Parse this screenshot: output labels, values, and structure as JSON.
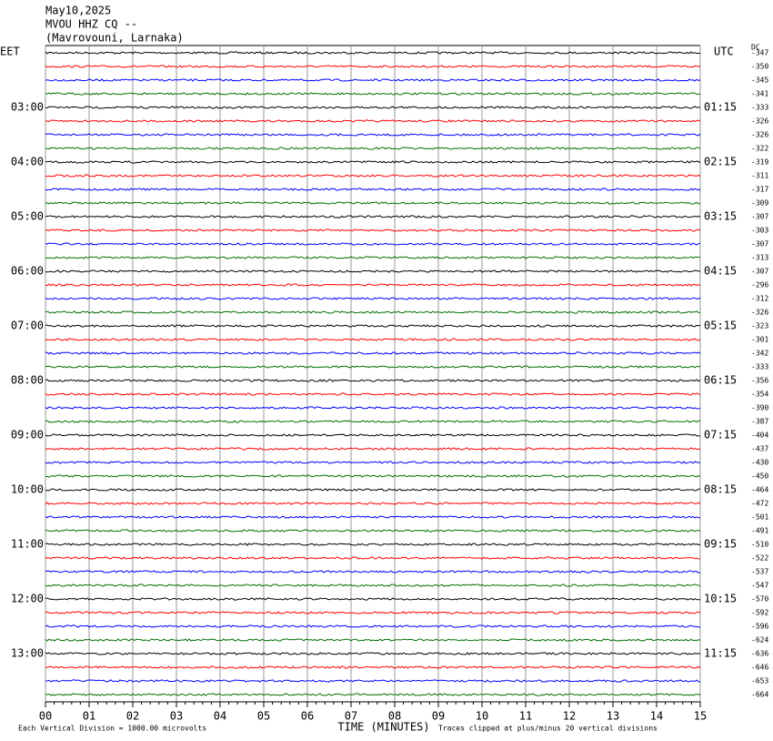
{
  "chart_data": {
    "type": "helicorder",
    "title_lines": [
      "May10,2025",
      "MVOU HHZ CQ --",
      "(Mavrovouni, Larnaka)"
    ],
    "left_zone": "EET",
    "right_zone": "UTC",
    "dc_header": "DC",
    "x_label": "TIME (MINUTES)",
    "scale_note": "Each Vertical Division = 1000.00 microvolts",
    "clip_note": "Traces clipped at plus/minus 20 vertical divisions",
    "xlim": [
      0,
      15
    ],
    "xticks": [
      {
        "value": 0,
        "label": "00"
      },
      {
        "value": 1,
        "label": "01"
      },
      {
        "value": 2,
        "label": "02"
      },
      {
        "value": 3,
        "label": "03"
      },
      {
        "value": 4,
        "label": "04"
      },
      {
        "value": 5,
        "label": "05"
      },
      {
        "value": 6,
        "label": "06"
      },
      {
        "value": 7,
        "label": "07"
      },
      {
        "value": 8,
        "label": "08"
      },
      {
        "value": 9,
        "label": "09"
      },
      {
        "value": 10,
        "label": "10"
      },
      {
        "value": 11,
        "label": "11"
      },
      {
        "value": 12,
        "label": "12"
      },
      {
        "value": 13,
        "label": "13"
      },
      {
        "value": 14,
        "label": "14"
      },
      {
        "value": 15,
        "label": "15"
      }
    ],
    "trace_colors": [
      "#000000",
      "#ff0000",
      "#0000ff",
      "#007000"
    ],
    "rows": [
      {
        "left": null,
        "right": null,
        "dc": -347
      },
      {
        "left": null,
        "right": null,
        "dc": -350
      },
      {
        "left": null,
        "right": null,
        "dc": -345
      },
      {
        "left": null,
        "right": null,
        "dc": -341
      },
      {
        "left": "03:00",
        "right": "01:15",
        "dc": -333
      },
      {
        "left": null,
        "right": null,
        "dc": -326
      },
      {
        "left": null,
        "right": null,
        "dc": -326
      },
      {
        "left": null,
        "right": null,
        "dc": -322
      },
      {
        "left": "04:00",
        "right": "02:15",
        "dc": -319
      },
      {
        "left": null,
        "right": null,
        "dc": -311
      },
      {
        "left": null,
        "right": null,
        "dc": -317
      },
      {
        "left": null,
        "right": null,
        "dc": -309
      },
      {
        "left": "05:00",
        "right": "03:15",
        "dc": -307
      },
      {
        "left": null,
        "right": null,
        "dc": -303
      },
      {
        "left": null,
        "right": null,
        "dc": -307
      },
      {
        "left": null,
        "right": null,
        "dc": -313
      },
      {
        "left": "06:00",
        "right": "04:15",
        "dc": -307
      },
      {
        "left": null,
        "right": null,
        "dc": -296
      },
      {
        "left": null,
        "right": null,
        "dc": -312
      },
      {
        "left": null,
        "right": null,
        "dc": -326
      },
      {
        "left": "07:00",
        "right": "05:15",
        "dc": -323
      },
      {
        "left": null,
        "right": null,
        "dc": -301
      },
      {
        "left": null,
        "right": null,
        "dc": -342
      },
      {
        "left": null,
        "right": null,
        "dc": -333
      },
      {
        "left": "08:00",
        "right": "06:15",
        "dc": -356
      },
      {
        "left": null,
        "right": null,
        "dc": -354
      },
      {
        "left": null,
        "right": null,
        "dc": -390
      },
      {
        "left": null,
        "right": null,
        "dc": -387
      },
      {
        "left": "09:00",
        "right": "07:15",
        "dc": -404
      },
      {
        "left": null,
        "right": null,
        "dc": -437
      },
      {
        "left": null,
        "right": null,
        "dc": -430
      },
      {
        "left": null,
        "right": null,
        "dc": -450
      },
      {
        "left": "10:00",
        "right": "08:15",
        "dc": -464
      },
      {
        "left": null,
        "right": null,
        "dc": -472
      },
      {
        "left": null,
        "right": null,
        "dc": -501
      },
      {
        "left": null,
        "right": null,
        "dc": -491
      },
      {
        "left": "11:00",
        "right": "09:15",
        "dc": -510
      },
      {
        "left": null,
        "right": null,
        "dc": -522
      },
      {
        "left": null,
        "right": null,
        "dc": -537
      },
      {
        "left": null,
        "right": null,
        "dc": -547
      },
      {
        "left": "12:00",
        "right": "10:15",
        "dc": -570
      },
      {
        "left": null,
        "right": null,
        "dc": -592
      },
      {
        "left": null,
        "right": null,
        "dc": -596
      },
      {
        "left": null,
        "right": null,
        "dc": -624
      },
      {
        "left": "13:00",
        "right": "11:15",
        "dc": -636
      },
      {
        "left": null,
        "right": null,
        "dc": -646
      },
      {
        "left": null,
        "right": null,
        "dc": -653
      },
      {
        "left": null,
        "right": null,
        "dc": -664
      }
    ]
  }
}
